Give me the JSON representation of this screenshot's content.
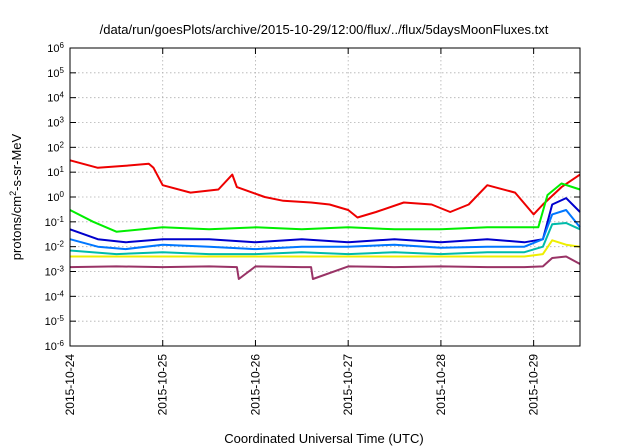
{
  "chart_data": {
    "type": "line",
    "title": "/data/run/goesPlots/archive/2015-10-29/12:00/flux/../flux/5daysMoonFluxes.txt",
    "xlabel": "Coordinated Universal Time (UTC)",
    "ylabel": {
      "base": "protons/cm",
      "sup": "2",
      "rest": "-s-sr-MeV"
    },
    "x_ticks": [
      "2015-10-24",
      "2015-10-25",
      "2015-10-26",
      "2015-10-27",
      "2015-10-28",
      "2015-10-29"
    ],
    "xlim": [
      0,
      5.5
    ],
    "y_scale": "log",
    "ylim": [
      1e-06,
      1000000.0
    ],
    "y_ticks": [
      {
        "base": "10",
        "exp": "-6"
      },
      {
        "base": "10",
        "exp": "-5"
      },
      {
        "base": "10",
        "exp": "-4"
      },
      {
        "base": "10",
        "exp": "-3"
      },
      {
        "base": "10",
        "exp": "-2"
      },
      {
        "base": "10",
        "exp": "-1"
      },
      {
        "base": "10",
        "exp": "0"
      },
      {
        "base": "10",
        "exp": "1"
      },
      {
        "base": "10",
        "exp": "2"
      },
      {
        "base": "10",
        "exp": "3"
      },
      {
        "base": "10",
        "exp": "4"
      },
      {
        "base": "10",
        "exp": "5"
      },
      {
        "base": "10",
        "exp": "6"
      }
    ],
    "grid": true,
    "legend": "none",
    "series": [
      {
        "color": "#ee0000",
        "x": [
          0,
          0.3,
          0.6,
          0.85,
          0.9,
          1.0,
          1.3,
          1.6,
          1.75,
          1.8,
          2.1,
          2.3,
          2.6,
          2.8,
          3.0,
          3.1,
          3.3,
          3.6,
          3.9,
          4.1,
          4.3,
          4.5,
          4.8,
          5.0,
          5.1,
          5.3,
          5.5
        ],
        "y": [
          30,
          15,
          18,
          22,
          15,
          3,
          1.5,
          2,
          8,
          2.5,
          1,
          0.7,
          0.6,
          0.5,
          0.3,
          0.15,
          0.25,
          0.6,
          0.5,
          0.25,
          0.5,
          3,
          1.5,
          0.2,
          0.5,
          2.5,
          8
        ]
      },
      {
        "color": "#00ee00",
        "x": [
          0,
          0.25,
          0.5,
          1.0,
          1.5,
          2.0,
          2.5,
          3.0,
          3.5,
          4.0,
          4.5,
          4.9,
          5.05,
          5.15,
          5.3,
          5.5
        ],
        "y": [
          0.3,
          0.1,
          0.04,
          0.06,
          0.05,
          0.06,
          0.05,
          0.06,
          0.05,
          0.05,
          0.06,
          0.06,
          0.06,
          1.2,
          3.5,
          2
        ]
      },
      {
        "color": "#0000cc",
        "x": [
          0,
          0.3,
          0.6,
          1.0,
          1.5,
          2.0,
          2.5,
          3.0,
          3.5,
          4.0,
          4.5,
          4.9,
          5.1,
          5.2,
          5.35,
          5.5
        ],
        "y": [
          0.05,
          0.02,
          0.015,
          0.02,
          0.02,
          0.015,
          0.02,
          0.015,
          0.02,
          0.015,
          0.02,
          0.015,
          0.02,
          0.5,
          0.9,
          0.25
        ]
      },
      {
        "color": "#0077ff",
        "x": [
          0,
          0.3,
          0.6,
          1.0,
          1.5,
          2.0,
          2.5,
          3.0,
          3.5,
          4.0,
          4.5,
          4.9,
          5.1,
          5.2,
          5.35,
          5.5
        ],
        "y": [
          0.02,
          0.01,
          0.008,
          0.012,
          0.01,
          0.008,
          0.01,
          0.01,
          0.012,
          0.009,
          0.01,
          0.01,
          0.02,
          0.2,
          0.3,
          0.06
        ]
      },
      {
        "color": "#00bbaa",
        "x": [
          0,
          0.5,
          1.0,
          1.5,
          2.0,
          2.5,
          3.0,
          3.5,
          4.0,
          4.5,
          4.9,
          5.1,
          5.2,
          5.35,
          5.5
        ],
        "y": [
          0.007,
          0.005,
          0.006,
          0.005,
          0.005,
          0.006,
          0.005,
          0.006,
          0.005,
          0.006,
          0.006,
          0.01,
          0.08,
          0.09,
          0.05
        ]
      },
      {
        "color": "#eeee00",
        "x": [
          0,
          0.5,
          1.0,
          1.5,
          2.0,
          2.5,
          3.0,
          3.5,
          4.0,
          4.5,
          4.9,
          5.1,
          5.2,
          5.35,
          5.5
        ],
        "y": [
          0.004,
          0.004,
          0.004,
          0.004,
          0.004,
          0.004,
          0.004,
          0.004,
          0.004,
          0.004,
          0.004,
          0.005,
          0.018,
          0.012,
          0.01
        ]
      },
      {
        "color": "#993366",
        "x": [
          0,
          0.5,
          1.0,
          1.5,
          1.8,
          1.82,
          2.0,
          2.5,
          2.6,
          2.62,
          3.0,
          3.5,
          4.0,
          4.5,
          4.9,
          5.1,
          5.2,
          5.35,
          5.5
        ],
        "y": [
          0.0015,
          0.0016,
          0.0015,
          0.0016,
          0.0015,
          0.0005,
          0.0016,
          0.0015,
          0.0015,
          0.0005,
          0.0016,
          0.0015,
          0.0016,
          0.0015,
          0.0015,
          0.0016,
          0.0035,
          0.004,
          0.002
        ]
      }
    ]
  }
}
